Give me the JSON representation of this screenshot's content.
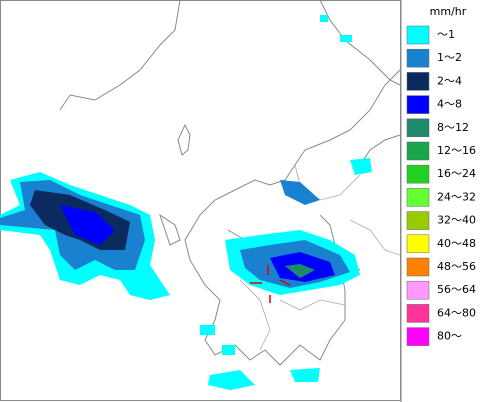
{
  "legend": {
    "title": "mm/hr",
    "items": [
      {
        "label": "～1",
        "color": "#00ffff"
      },
      {
        "label": "1～2",
        "color": "#1a80d0"
      },
      {
        "label": "2～4",
        "color": "#0a2a60"
      },
      {
        "label": "4～8",
        "color": "#0000ff"
      },
      {
        "label": "8～12",
        "color": "#1f8a6a"
      },
      {
        "label": "12～16",
        "color": "#1aa64a"
      },
      {
        "label": "16～24",
        "color": "#22d022"
      },
      {
        "label": "24～32",
        "color": "#66ff33"
      },
      {
        "label": "32～40",
        "color": "#99cc00"
      },
      {
        "label": "40～48",
        "color": "#ffff00"
      },
      {
        "label": "48～56",
        "color": "#ff8000"
      },
      {
        "label": "56～64",
        "color": "#ff99ff"
      },
      {
        "label": "64～80",
        "color": "#ff3399"
      },
      {
        "label": "80～",
        "color": "#ff00ff"
      }
    ]
  }
}
